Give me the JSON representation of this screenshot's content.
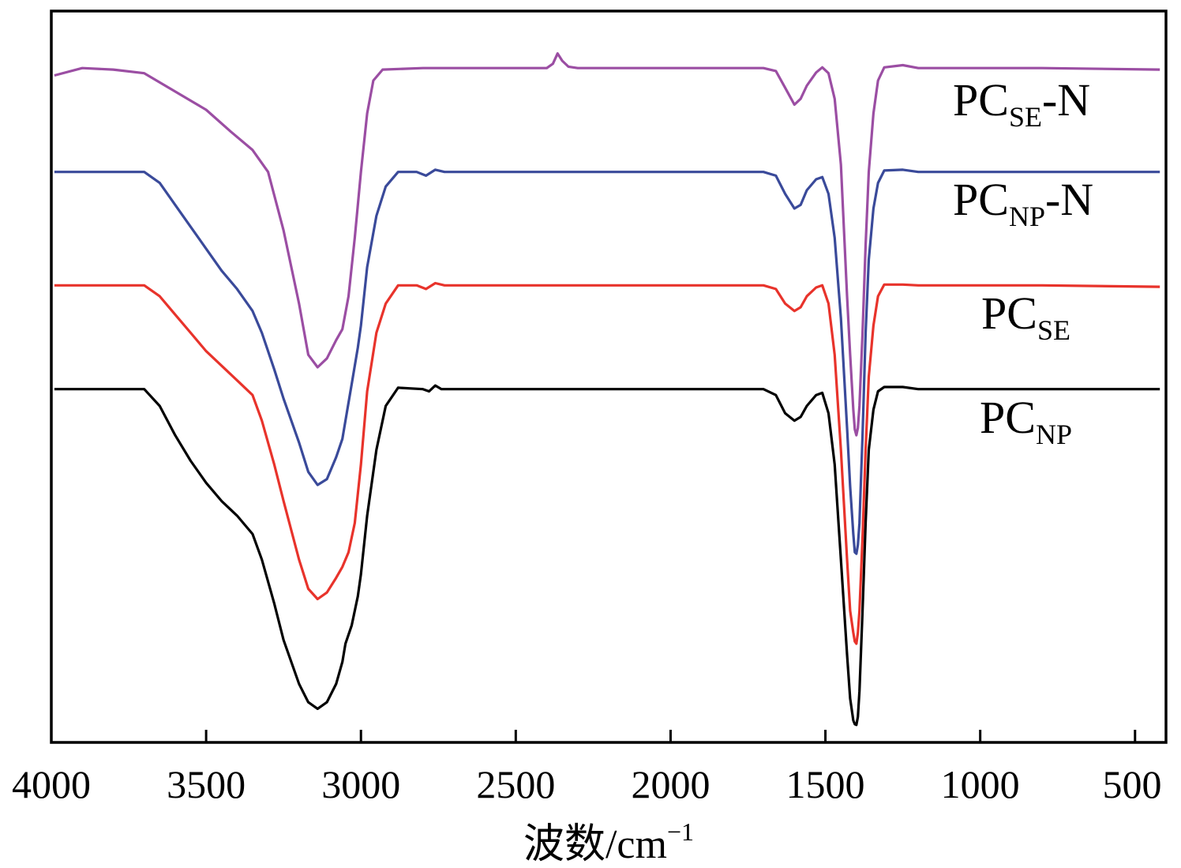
{
  "chart_data": {
    "type": "line",
    "title": "",
    "xlabel": "波数/cm",
    "xlabel_superscript": "−1",
    "ylabel": "",
    "xlim": [
      4000,
      400
    ],
    "x_reversed": true,
    "x_ticks": [
      4000,
      3500,
      3000,
      2500,
      2000,
      1500,
      1000,
      500
    ],
    "x_tick_labels": [
      "4000",
      "3500",
      "3000",
      "2500",
      "2000",
      "1500",
      "1000",
      "500"
    ],
    "ylim": [
      0,
      100
    ],
    "y_ticks_shown": false,
    "grid": false,
    "legend": "none (direct series labels at right)",
    "series": [
      {
        "name": "PC",
        "name_sub": "SE",
        "name_suffix": "-N",
        "color": "#9b4ea3",
        "points": [
          [
            3990,
            91.2
          ],
          [
            3900,
            92.2
          ],
          [
            3800,
            92.0
          ],
          [
            3700,
            91.5
          ],
          [
            3600,
            89.0
          ],
          [
            3500,
            86.5
          ],
          [
            3420,
            83.5
          ],
          [
            3350,
            81.0
          ],
          [
            3300,
            78.0
          ],
          [
            3250,
            70.0
          ],
          [
            3200,
            60.0
          ],
          [
            3170,
            53.0
          ],
          [
            3140,
            51.3
          ],
          [
            3110,
            52.5
          ],
          [
            3080,
            55.0
          ],
          [
            3060,
            56.5
          ],
          [
            3040,
            61.0
          ],
          [
            3020,
            69.0
          ],
          [
            3000,
            78.0
          ],
          [
            2980,
            86.0
          ],
          [
            2960,
            90.5
          ],
          [
            2930,
            92.0
          ],
          [
            2800,
            92.2
          ],
          [
            2400,
            92.2
          ],
          [
            2380,
            92.8
          ],
          [
            2365,
            94.2
          ],
          [
            2350,
            93.2
          ],
          [
            2330,
            92.4
          ],
          [
            2300,
            92.2
          ],
          [
            1700,
            92.2
          ],
          [
            1660,
            91.8
          ],
          [
            1630,
            89.5
          ],
          [
            1600,
            87.2
          ],
          [
            1580,
            88.0
          ],
          [
            1560,
            89.8
          ],
          [
            1530,
            91.6
          ],
          [
            1510,
            92.3
          ],
          [
            1490,
            91.5
          ],
          [
            1470,
            88.0
          ],
          [
            1450,
            79.0
          ],
          [
            1430,
            61.0
          ],
          [
            1420,
            53.0
          ],
          [
            1410,
            45.5
          ],
          [
            1405,
            42.8
          ],
          [
            1400,
            42.0
          ],
          [
            1395,
            43.0
          ],
          [
            1390,
            46.0
          ],
          [
            1380,
            56.0
          ],
          [
            1370,
            68.0
          ],
          [
            1360,
            78.0
          ],
          [
            1345,
            86.0
          ],
          [
            1330,
            90.5
          ],
          [
            1310,
            92.3
          ],
          [
            1250,
            92.6
          ],
          [
            1200,
            92.2
          ],
          [
            800,
            92.2
          ],
          [
            420,
            92.0
          ]
        ]
      },
      {
        "name": "PC",
        "name_sub": "NP",
        "name_suffix": "-N",
        "color": "#3a4a9a",
        "points": [
          [
            3990,
            78.0
          ],
          [
            3700,
            78.0
          ],
          [
            3650,
            76.5
          ],
          [
            3600,
            73.5
          ],
          [
            3550,
            70.5
          ],
          [
            3500,
            67.5
          ],
          [
            3450,
            64.5
          ],
          [
            3400,
            62.0
          ],
          [
            3350,
            59.0
          ],
          [
            3320,
            56.0
          ],
          [
            3280,
            51.0
          ],
          [
            3250,
            47.0
          ],
          [
            3200,
            41.0
          ],
          [
            3170,
            37.0
          ],
          [
            3140,
            35.2
          ],
          [
            3110,
            36.0
          ],
          [
            3080,
            39.0
          ],
          [
            3060,
            41.5
          ],
          [
            3050,
            44.0
          ],
          [
            3030,
            49.0
          ],
          [
            3010,
            54.0
          ],
          [
            3000,
            57.0
          ],
          [
            2980,
            65.0
          ],
          [
            2950,
            72.0
          ],
          [
            2920,
            76.0
          ],
          [
            2880,
            78.0
          ],
          [
            2820,
            78.0
          ],
          [
            2790,
            77.5
          ],
          [
            2760,
            78.3
          ],
          [
            2730,
            78.0
          ],
          [
            1700,
            78.0
          ],
          [
            1660,
            77.5
          ],
          [
            1630,
            75.0
          ],
          [
            1600,
            73.0
          ],
          [
            1580,
            73.5
          ],
          [
            1560,
            75.5
          ],
          [
            1530,
            77.0
          ],
          [
            1510,
            77.3
          ],
          [
            1490,
            75.0
          ],
          [
            1470,
            69.0
          ],
          [
            1450,
            58.0
          ],
          [
            1430,
            43.0
          ],
          [
            1420,
            35.0
          ],
          [
            1410,
            28.5
          ],
          [
            1405,
            26.0
          ],
          [
            1400,
            25.8
          ],
          [
            1395,
            27.0
          ],
          [
            1390,
            30.0
          ],
          [
            1380,
            42.0
          ],
          [
            1370,
            56.0
          ],
          [
            1360,
            66.0
          ],
          [
            1345,
            73.0
          ],
          [
            1330,
            76.5
          ],
          [
            1310,
            78.2
          ],
          [
            1250,
            78.3
          ],
          [
            1200,
            78.0
          ],
          [
            800,
            78.0
          ],
          [
            420,
            78.0
          ]
        ]
      },
      {
        "name": "PC",
        "name_sub": "SE",
        "name_suffix": "",
        "color": "#e8332b",
        "points": [
          [
            3990,
            62.5
          ],
          [
            3700,
            62.5
          ],
          [
            3650,
            61.0
          ],
          [
            3600,
            58.5
          ],
          [
            3550,
            56.0
          ],
          [
            3500,
            53.5
          ],
          [
            3450,
            51.5
          ],
          [
            3400,
            49.5
          ],
          [
            3350,
            47.5
          ],
          [
            3320,
            44.0
          ],
          [
            3280,
            38.0
          ],
          [
            3250,
            33.0
          ],
          [
            3200,
            25.0
          ],
          [
            3170,
            21.0
          ],
          [
            3140,
            19.6
          ],
          [
            3110,
            20.5
          ],
          [
            3080,
            22.5
          ],
          [
            3060,
            24.0
          ],
          [
            3040,
            26.0
          ],
          [
            3020,
            30.0
          ],
          [
            3000,
            38.0
          ],
          [
            2980,
            48.0
          ],
          [
            2950,
            56.0
          ],
          [
            2920,
            60.0
          ],
          [
            2880,
            62.5
          ],
          [
            2820,
            62.5
          ],
          [
            2790,
            62.0
          ],
          [
            2760,
            62.8
          ],
          [
            2730,
            62.5
          ],
          [
            1700,
            62.5
          ],
          [
            1660,
            62.0
          ],
          [
            1630,
            60.0
          ],
          [
            1600,
            59.0
          ],
          [
            1580,
            59.5
          ],
          [
            1560,
            61.0
          ],
          [
            1530,
            62.2
          ],
          [
            1510,
            62.5
          ],
          [
            1490,
            60.0
          ],
          [
            1470,
            53.0
          ],
          [
            1450,
            40.0
          ],
          [
            1430,
            25.0
          ],
          [
            1420,
            18.0
          ],
          [
            1410,
            15.0
          ],
          [
            1405,
            13.8
          ],
          [
            1400,
            13.5
          ],
          [
            1395,
            15.0
          ],
          [
            1390,
            18.0
          ],
          [
            1380,
            28.0
          ],
          [
            1370,
            40.0
          ],
          [
            1360,
            50.0
          ],
          [
            1345,
            57.0
          ],
          [
            1330,
            61.0
          ],
          [
            1310,
            62.6
          ],
          [
            1250,
            62.6
          ],
          [
            1200,
            62.5
          ],
          [
            800,
            62.5
          ],
          [
            420,
            62.3
          ]
        ]
      },
      {
        "name": "PC",
        "name_sub": "NP",
        "name_suffix": "",
        "color": "#000000",
        "points": [
          [
            3990,
            48.3
          ],
          [
            3700,
            48.3
          ],
          [
            3650,
            46.0
          ],
          [
            3600,
            42.0
          ],
          [
            3550,
            38.5
          ],
          [
            3500,
            35.5
          ],
          [
            3450,
            33.0
          ],
          [
            3400,
            31.0
          ],
          [
            3350,
            28.5
          ],
          [
            3320,
            25.0
          ],
          [
            3280,
            19.0
          ],
          [
            3250,
            14.0
          ],
          [
            3200,
            8.0
          ],
          [
            3170,
            5.5
          ],
          [
            3140,
            4.6
          ],
          [
            3110,
            5.5
          ],
          [
            3080,
            8.0
          ],
          [
            3060,
            11.0
          ],
          [
            3050,
            13.5
          ],
          [
            3030,
            16.0
          ],
          [
            3010,
            20.0
          ],
          [
            3000,
            23.0
          ],
          [
            2980,
            31.0
          ],
          [
            2950,
            40.0
          ],
          [
            2920,
            46.0
          ],
          [
            2880,
            48.5
          ],
          [
            2800,
            48.3
          ],
          [
            2780,
            48.0
          ],
          [
            2760,
            48.8
          ],
          [
            2740,
            48.3
          ],
          [
            1700,
            48.3
          ],
          [
            1660,
            47.5
          ],
          [
            1630,
            45.0
          ],
          [
            1600,
            44.0
          ],
          [
            1580,
            44.5
          ],
          [
            1560,
            46.0
          ],
          [
            1530,
            47.5
          ],
          [
            1510,
            47.8
          ],
          [
            1490,
            45.0
          ],
          [
            1470,
            38.0
          ],
          [
            1450,
            25.0
          ],
          [
            1430,
            12.0
          ],
          [
            1420,
            6.0
          ],
          [
            1410,
            3.0
          ],
          [
            1405,
            2.5
          ],
          [
            1400,
            2.4
          ],
          [
            1395,
            3.5
          ],
          [
            1390,
            7.0
          ],
          [
            1380,
            18.0
          ],
          [
            1370,
            30.0
          ],
          [
            1360,
            40.0
          ],
          [
            1345,
            45.5
          ],
          [
            1330,
            48.0
          ],
          [
            1310,
            48.6
          ],
          [
            1250,
            48.6
          ],
          [
            1200,
            48.3
          ],
          [
            800,
            48.3
          ],
          [
            420,
            48.3
          ]
        ]
      }
    ]
  }
}
